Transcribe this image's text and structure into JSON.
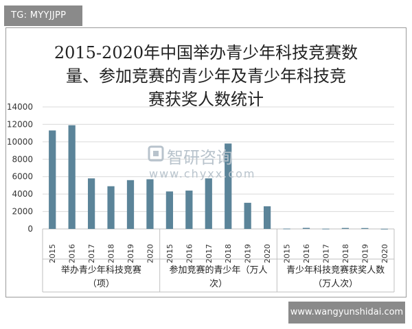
{
  "tag": "TG: MYYJJPP",
  "site": "www.wangyunshidai.com",
  "watermark": {
    "name": "智研咨询",
    "url": "www.chyxx.com"
  },
  "chart_data": {
    "type": "bar",
    "title_lines": [
      "2015-2020年中国举办青少年科技竞赛数",
      "量、参加竞赛的青少年及青少年科技竞",
      "赛获奖人数统计"
    ],
    "ylim": [
      0,
      14000
    ],
    "yticks": [
      0,
      2000,
      4000,
      6000,
      8000,
      10000,
      12000,
      14000
    ],
    "grid": true,
    "bar_color": "#5b8499",
    "groups": [
      {
        "name": "举办青少年科技竞赛（项）",
        "name_lines": [
          "举办青少年科技竞赛",
          "（项）"
        ],
        "categories": [
          "2015",
          "2016",
          "2017",
          "2018",
          "2019",
          "2020"
        ],
        "values": [
          11300,
          11900,
          5800,
          4900,
          5600,
          5700
        ]
      },
      {
        "name": "参加竞赛的青少年（万人次）",
        "name_lines": [
          "参加竞赛的青少年（万人",
          "次）"
        ],
        "categories": [
          "2015",
          "2016",
          "2017",
          "2018",
          "2019",
          "2020"
        ],
        "values": [
          4300,
          4400,
          5800,
          9800,
          3000,
          2600
        ]
      },
      {
        "name": "青少年科技竞赛获奖人数（万人次）",
        "name_lines": [
          "青少年科技竞赛获奖人数",
          "（万人次）"
        ],
        "categories": [
          "2015",
          "2016",
          "2017",
          "2018",
          "2019",
          "2020"
        ],
        "values": [
          40,
          120,
          30,
          110,
          100,
          20
        ]
      }
    ]
  }
}
